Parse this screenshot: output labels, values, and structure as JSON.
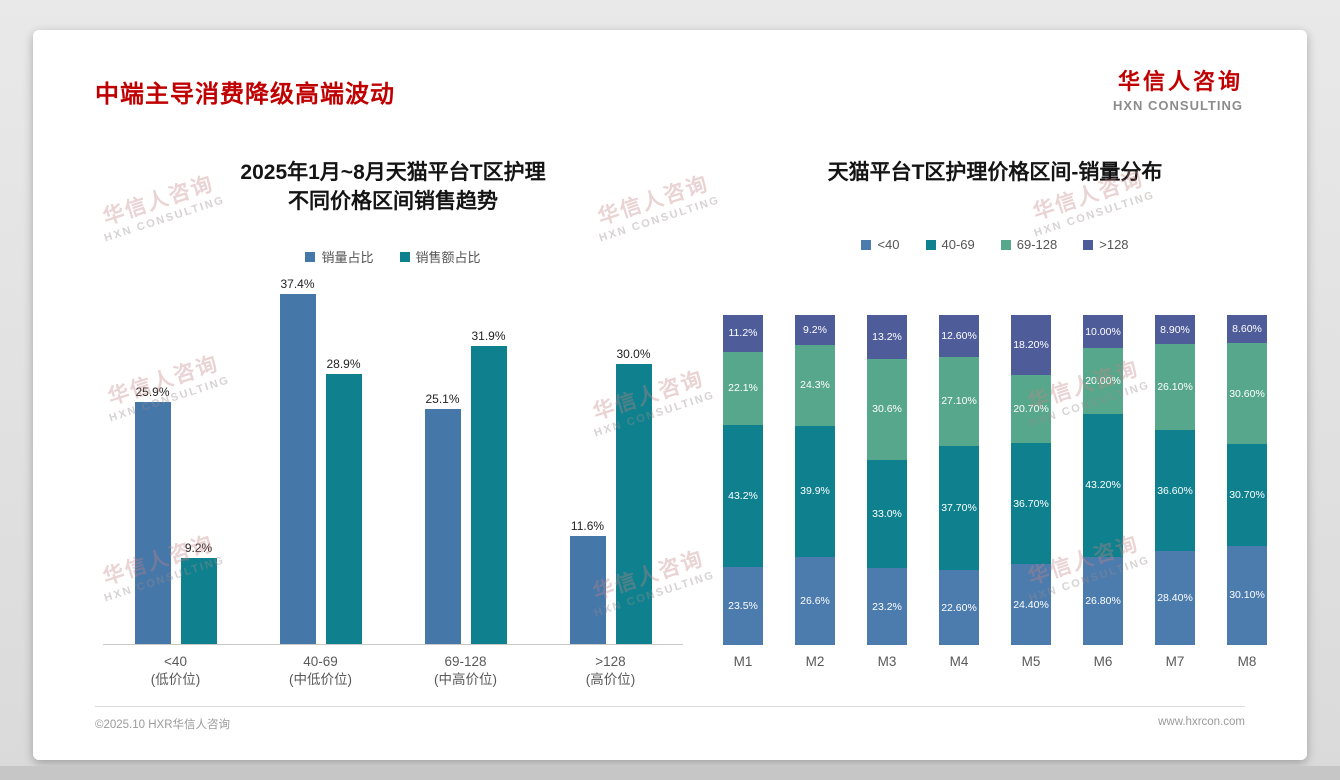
{
  "slide": {
    "title": "中端主导消费降级高端波动",
    "logo": {
      "cn": "华信人咨询",
      "en": "HXN CONSULTING"
    },
    "footer": {
      "left": "©2025.10 HXR华信人咨询",
      "right": "www.hxrcon.com"
    },
    "watermark": {
      "cn": "华信人咨询",
      "en": "HXN CONSULTING"
    },
    "colors": {
      "accent_red": "#c00000"
    }
  },
  "chart_data": [
    {
      "type": "bar",
      "stacked": false,
      "title_lines": [
        "2025年1月~8月天猫平台T区护理",
        "不同价格区间销售趋势"
      ],
      "categories": [
        "<40",
        "40-69",
        "69-128",
        ">128"
      ],
      "category_subs": [
        "(低价位)",
        "(中低价位)",
        "(中高价位)",
        "(高价位)"
      ],
      "ylim": [
        0,
        40
      ],
      "grid": false,
      "legend_position": "top",
      "series": [
        {
          "name": "销量占比",
          "color": "#4577a9",
          "values": [
            25.9,
            37.4,
            25.1,
            11.6
          ],
          "labels": [
            "25.9%",
            "37.4%",
            "25.1%",
            "11.6%"
          ]
        },
        {
          "name": "销售额占比",
          "color": "#0f818e",
          "values": [
            9.2,
            28.9,
            31.9,
            30.0
          ],
          "labels": [
            "9.2%",
            "28.9%",
            "31.9%",
            "30.0%"
          ]
        }
      ]
    },
    {
      "type": "bar",
      "stacked": true,
      "title_lines": [
        "天猫平台T区护理价格区间-销量分布"
      ],
      "categories": [
        "M1",
        "M2",
        "M3",
        "M4",
        "M5",
        "M6",
        "M7",
        "M8"
      ],
      "ylim": [
        0,
        100
      ],
      "grid": false,
      "legend_position": "top",
      "series": [
        {
          "name": "<40",
          "color": "#4c7bad",
          "values": [
            23.5,
            26.6,
            23.2,
            22.6,
            24.4,
            26.8,
            28.4,
            30.1
          ],
          "labels": [
            "23.5%",
            "26.6%",
            "23.2%",
            "22.60%",
            "24.40%",
            "26.80%",
            "28.40%",
            "30.10%"
          ]
        },
        {
          "name": "40-69",
          "color": "#0f818e",
          "values": [
            43.2,
            39.9,
            33.0,
            37.7,
            36.7,
            43.2,
            36.6,
            30.7
          ],
          "labels": [
            "43.2%",
            "39.9%",
            "33.0%",
            "37.70%",
            "36.70%",
            "43.20%",
            "36.60%",
            "30.70%"
          ]
        },
        {
          "name": "69-128",
          "color": "#57a78c",
          "values": [
            22.1,
            24.3,
            30.6,
            27.1,
            20.7,
            20.0,
            26.1,
            30.6
          ],
          "labels": [
            "22.1%",
            "24.3%",
            "30.6%",
            "27.10%",
            "20.70%",
            "20.00%",
            "26.10%",
            "30.60%"
          ]
        },
        {
          "name": ">128",
          "color": "#4e5c99",
          "values": [
            11.2,
            9.2,
            13.2,
            12.6,
            18.2,
            10.0,
            8.9,
            8.6
          ],
          "labels": [
            "11.2%",
            "9.2%",
            "13.2%",
            "12.60%",
            "18.20%",
            "10.00%",
            "8.90%",
            "8.60%"
          ]
        }
      ]
    }
  ]
}
